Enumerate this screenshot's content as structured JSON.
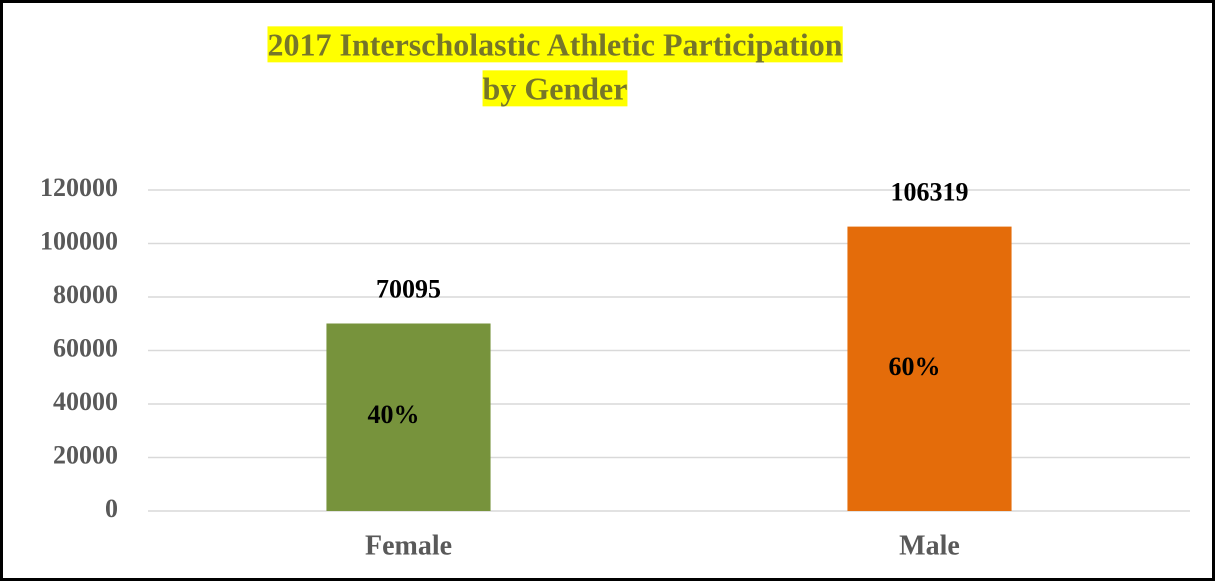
{
  "chart_data": {
    "type": "bar",
    "title": [
      "2017 Interscholastic Athletic Participation",
      "by Gender"
    ],
    "categories": [
      "Female",
      "Male"
    ],
    "values": [
      70095,
      106319
    ],
    "share_labels": [
      "40%",
      "60%"
    ],
    "colors": [
      "#77933c",
      "#e46c0a"
    ],
    "ylim": [
      0,
      120000
    ],
    "yticks": [
      0,
      20000,
      40000,
      60000,
      80000,
      100000,
      120000
    ],
    "grid": true
  }
}
